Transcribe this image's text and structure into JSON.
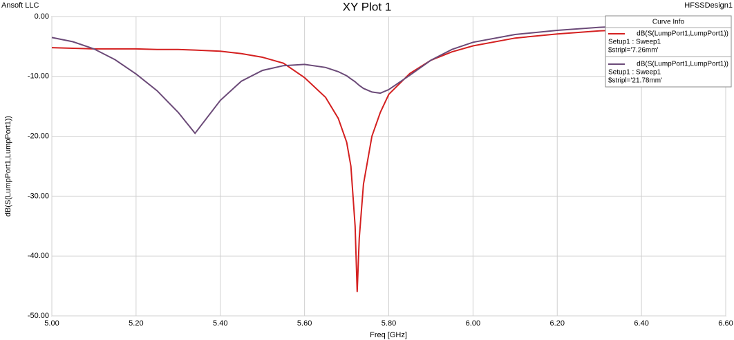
{
  "chart_data": {
    "type": "line",
    "title": "XY Plot 1",
    "company": "Ansoft LLC",
    "design": "HFSSDesign1",
    "x_label": "Freq [GHz]",
    "y_label": "dB(S(LumpPort1,LumpPort1))",
    "legend_title": "Curve Info",
    "x": [
      5.0,
      5.05,
      5.1,
      5.15,
      5.2,
      5.25,
      5.3,
      5.34,
      5.4,
      5.45,
      5.5,
      5.55,
      5.6,
      5.65,
      5.68,
      5.7,
      5.71,
      5.72,
      5.725,
      5.73,
      5.74,
      5.76,
      5.78,
      5.8,
      5.85,
      5.9,
      5.95,
      6.0,
      6.1,
      6.2,
      6.3,
      6.4,
      6.5,
      6.6
    ],
    "series": [
      {
        "name": "dB(S(LumpPort1,LumpPort1))",
        "setup": "Setup1 : Sweep1",
        "variation": "$stripl='7.26mm'",
        "color": "#d42020",
        "values": [
          -5.2,
          -5.3,
          -5.4,
          -5.4,
          -5.4,
          -5.5,
          -5.5,
          -5.6,
          -5.8,
          -6.2,
          -6.8,
          -7.8,
          -10.2,
          -13.5,
          -17,
          -21,
          -25,
          -35,
          -46,
          -37,
          -28,
          -20,
          -16,
          -13,
          -9.5,
          -7.3,
          -5.9,
          -4.9,
          -3.6,
          -2.9,
          -2.4,
          -2.1,
          -1.8,
          -1.6
        ]
      },
      {
        "name": "dB(S(LumpPort1,LumpPort1))",
        "setup": "Setup1 : Sweep1",
        "variation": "$stripl='21.78mm'",
        "color": "#6b4a78",
        "values": [
          -3.5,
          -4.2,
          -5.4,
          -7.2,
          -9.6,
          -12.4,
          -16,
          -19.5,
          -14,
          -10.8,
          -9,
          -8.2,
          -8,
          -8.5,
          -9.2,
          -9.9,
          -10.4,
          -10.9,
          -11.2,
          -11.5,
          -12,
          -12.6,
          -12.8,
          -12.2,
          -9.8,
          -7.3,
          -5.5,
          -4.3,
          -3,
          -2.3,
          -1.8,
          -1.5,
          -1.3,
          -1.2
        ]
      }
    ],
    "xlim": [
      5.0,
      6.6
    ],
    "ylim": [
      -50,
      0
    ],
    "xticks": [
      {
        "value": 5.0,
        "label": "5.00"
      },
      {
        "value": 5.2,
        "label": "5.20"
      },
      {
        "value": 5.4,
        "label": "5.40"
      },
      {
        "value": 5.6,
        "label": "5.60"
      },
      {
        "value": 5.8,
        "label": "5.80"
      },
      {
        "value": 6.0,
        "label": "6.00"
      },
      {
        "value": 6.2,
        "label": "6.20"
      },
      {
        "value": 6.4,
        "label": "6.40"
      },
      {
        "value": 6.6,
        "label": "6.60"
      }
    ],
    "yticks": [
      {
        "value": 0,
        "label": "0.00"
      },
      {
        "value": -10,
        "label": "-10.00"
      },
      {
        "value": -20,
        "label": "-20.00"
      },
      {
        "value": -30,
        "label": "-30.00"
      },
      {
        "value": -40,
        "label": "-40.00"
      },
      {
        "value": -50,
        "label": "-50.00"
      }
    ],
    "grid": true
  }
}
